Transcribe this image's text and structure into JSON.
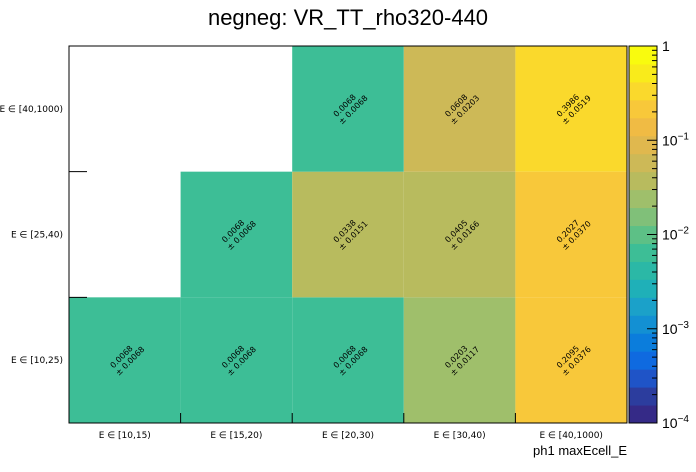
{
  "chart_data": {
    "type": "heatmap",
    "title": "negneg: VR_TT_rho320-440",
    "xlabel": "ph1 maxEcell_E",
    "ylabel": "",
    "x_categories": [
      "E ∈ [10,15)",
      "E ∈ [15,20)",
      "E ∈ [20,30)",
      "E ∈ [30,40)",
      "E ∈ [40,1000)"
    ],
    "y_categories": [
      "E ∈ [10,25)",
      "E ∈ [25,40)",
      "E ∈ [40,1000)"
    ],
    "z_scale": "log",
    "zlim": [
      0.0001,
      1
    ],
    "colorbar_ticks": [
      {
        "value": 1,
        "label": "1"
      },
      {
        "value": 0.1,
        "label": "10",
        "exp": "−1"
      },
      {
        "value": 0.01,
        "label": "10",
        "exp": "−2"
      },
      {
        "value": 0.001,
        "label": "10",
        "exp": "−3"
      },
      {
        "value": 0.0001,
        "label": "10",
        "exp": "−4"
      }
    ],
    "cells": [
      {
        "xi": 0,
        "yi": 0,
        "value": 0.0068,
        "error": 0.0068,
        "value_label": "0.0068",
        "error_label": "± 0.0068"
      },
      {
        "xi": 1,
        "yi": 0,
        "value": 0.0068,
        "error": 0.0068,
        "value_label": "0.0068",
        "error_label": "± 0.0068"
      },
      {
        "xi": 2,
        "yi": 0,
        "value": 0.0068,
        "error": 0.0068,
        "value_label": "0.0068",
        "error_label": "± 0.0068"
      },
      {
        "xi": 3,
        "yi": 0,
        "value": 0.0203,
        "error": 0.0117,
        "value_label": "0.0203",
        "error_label": "± 0.0117"
      },
      {
        "xi": 4,
        "yi": 0,
        "value": 0.2095,
        "error": 0.0376,
        "value_label": "0.2095",
        "error_label": "± 0.0376"
      },
      {
        "xi": 1,
        "yi": 1,
        "value": 0.0068,
        "error": 0.0068,
        "value_label": "0.0068",
        "error_label": "± 0.0068"
      },
      {
        "xi": 2,
        "yi": 1,
        "value": 0.0338,
        "error": 0.0151,
        "value_label": "0.0338",
        "error_label": "± 0.0151"
      },
      {
        "xi": 3,
        "yi": 1,
        "value": 0.0405,
        "error": 0.0166,
        "value_label": "0.0405",
        "error_label": "± 0.0166"
      },
      {
        "xi": 4,
        "yi": 1,
        "value": 0.2027,
        "error": 0.037,
        "value_label": "0.2027",
        "error_label": "± 0.0370"
      },
      {
        "xi": 2,
        "yi": 2,
        "value": 0.0068,
        "error": 0.0068,
        "value_label": "0.0068",
        "error_label": "± 0.0068"
      },
      {
        "xi": 3,
        "yi": 2,
        "value": 0.0608,
        "error": 0.0203,
        "value_label": "0.0608",
        "error_label": "± 0.0203"
      },
      {
        "xi": 4,
        "yi": 2,
        "value": 0.3986,
        "error": 0.0519,
        "value_label": "0.3986",
        "error_label": "± 0.0519"
      }
    ],
    "palette": [
      "#352a87",
      "#2c3d9e",
      "#1f54c7",
      "#0f6ae0",
      "#0b7ddc",
      "#1390d3",
      "#1ba1c9",
      "#1fb0b8",
      "#2bb8a6",
      "#3dbe96",
      "#5dc086",
      "#80c079",
      "#9fbf6b",
      "#b8bb5e",
      "#cdb957",
      "#e0b84e",
      "#f0bb44",
      "#f8c83a",
      "#fad92c",
      "#f9eb1b",
      "#f9fb0e"
    ]
  }
}
